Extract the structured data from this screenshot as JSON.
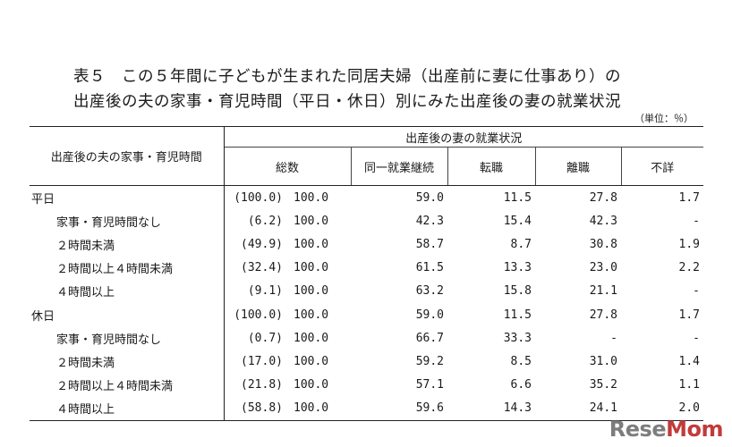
{
  "title": {
    "line1": "表５　この５年間に子どもが生まれた同居夫婦（出産前に妻に仕事あり）の",
    "line2": "出産後の夫の家事・育児時間（平日・休日）別にみた出産後の妻の就業状況"
  },
  "unit": "（単位：％）",
  "table": {
    "row_header": "出産後の夫の家事・育児時間",
    "group_header": "出産後の妻の就業状況",
    "columns": [
      "総数",
      "同一就業継続",
      "転職",
      "離職",
      "不詳"
    ],
    "rows": [
      {
        "label": "平日",
        "kind": "group",
        "base": "(100.0)",
        "total": "100.0",
        "cont": "59.0",
        "change": "11.5",
        "quit": "27.8",
        "unknown": "1.7"
      },
      {
        "label": "家事・育児時間なし",
        "kind": "sub",
        "base": "(6.2)",
        "total": "100.0",
        "cont": "42.3",
        "change": "15.4",
        "quit": "42.3",
        "unknown": "-"
      },
      {
        "label": "２時間未満",
        "kind": "sub",
        "base": "(49.9)",
        "total": "100.0",
        "cont": "58.7",
        "change": "8.7",
        "quit": "30.8",
        "unknown": "1.9"
      },
      {
        "label": "２時間以上４時間未満",
        "kind": "sub",
        "base": "(32.4)",
        "total": "100.0",
        "cont": "61.5",
        "change": "13.3",
        "quit": "23.0",
        "unknown": "2.2"
      },
      {
        "label": "４時間以上",
        "kind": "sub",
        "base": "(9.1)",
        "total": "100.0",
        "cont": "63.2",
        "change": "15.8",
        "quit": "21.1",
        "unknown": "-"
      },
      {
        "label": "休日",
        "kind": "group",
        "base": "(100.0)",
        "total": "100.0",
        "cont": "59.0",
        "change": "11.5",
        "quit": "27.8",
        "unknown": "1.7"
      },
      {
        "label": "家事・育児時間なし",
        "kind": "sub",
        "base": "(0.7)",
        "total": "100.0",
        "cont": "66.7",
        "change": "33.3",
        "quit": "-",
        "unknown": "-"
      },
      {
        "label": "２時間未満",
        "kind": "sub",
        "base": "(17.0)",
        "total": "100.0",
        "cont": "59.2",
        "change": "8.5",
        "quit": "31.0",
        "unknown": "1.4"
      },
      {
        "label": "２時間以上４時間未満",
        "kind": "sub",
        "base": "(21.8)",
        "total": "100.0",
        "cont": "57.1",
        "change": "6.6",
        "quit": "35.2",
        "unknown": "1.1"
      },
      {
        "label": "４時間以上",
        "kind": "sub",
        "base": "(58.8)",
        "total": "100.0",
        "cont": "59.6",
        "change": "14.3",
        "quit": "24.1",
        "unknown": "2.0"
      }
    ]
  },
  "watermark": {
    "part1": "Rese",
    "part2": "Mom"
  }
}
